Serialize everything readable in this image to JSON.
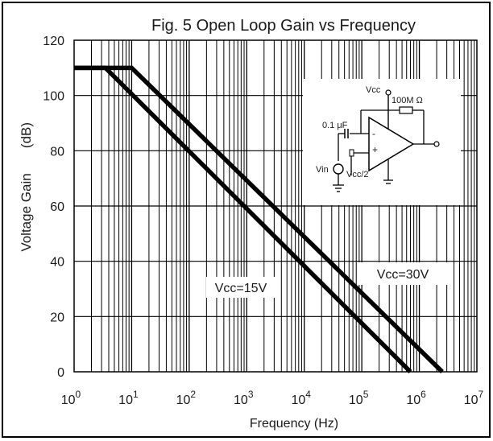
{
  "chart_data": {
    "type": "line",
    "title": "Fig. 5 Open Loop Gain vs Frequency",
    "xlabel": "Frequency (Hz)",
    "ylabel": "Voltage Gain (dB)",
    "ylabel_parts": [
      "Voltage Gain",
      "(dB)"
    ],
    "x_scale": "log",
    "xlim": [
      1,
      10000000
    ],
    "ylim": [
      0,
      120
    ],
    "grid": true,
    "x_ticks": [
      {
        "base": "10",
        "exp": "0"
      },
      {
        "base": "10",
        "exp": "1"
      },
      {
        "base": "10",
        "exp": "2"
      },
      {
        "base": "10",
        "exp": "3"
      },
      {
        "base": "10",
        "exp": "4"
      },
      {
        "base": "10",
        "exp": "5"
      },
      {
        "base": "10",
        "exp": "6"
      },
      {
        "base": "10",
        "exp": "7"
      }
    ],
    "y_ticks": [
      "0",
      "20",
      "40",
      "60",
      "80",
      "100",
      "120"
    ],
    "series": [
      {
        "name": "Vcc=15V",
        "x": [
          1,
          3.5,
          700000
        ],
        "y": [
          110,
          110,
          0
        ]
      },
      {
        "name": "Vcc=30V",
        "x": [
          1,
          10,
          2500000
        ],
        "y": [
          110,
          110,
          0
        ]
      }
    ],
    "annotations": [
      "Vcc=15V",
      "Vcc=30V"
    ],
    "inset": {
      "labels": [
        "Vcc",
        "100M Ω",
        "0.1 μF",
        "Vin",
        "Vcc/2",
        "+",
        "-"
      ]
    }
  }
}
